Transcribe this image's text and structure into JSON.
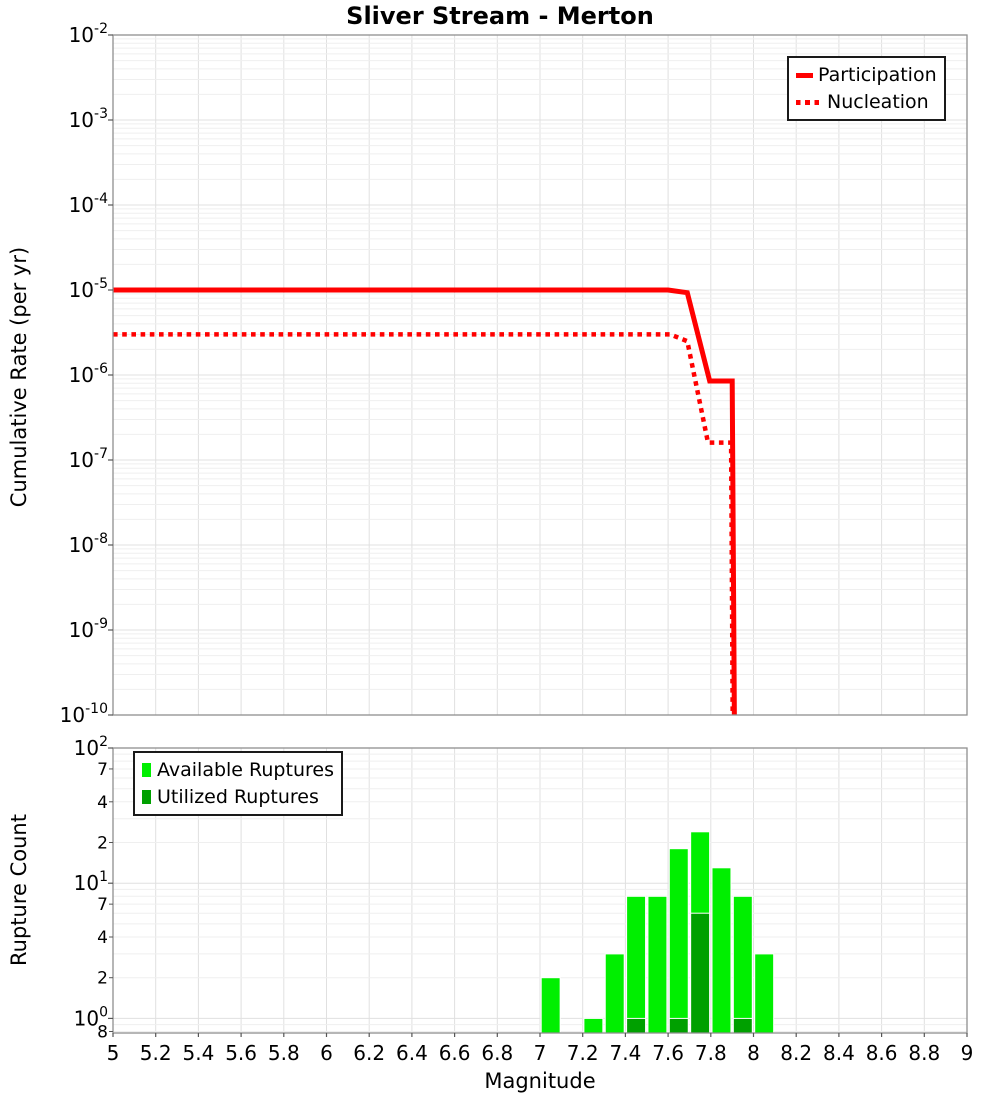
{
  "title": "Sliver Stream - Merton",
  "colors": {
    "line_red": "#ff0000",
    "available_green": "#00ef00",
    "utilized_green": "#00a000",
    "grid_minor": "#efefef",
    "grid_major": "#e0e0e0",
    "frame_gray": "#8f8f8f",
    "tick_gray": "#555555",
    "bar_outline": "#ffffff"
  },
  "x_tick_labels": [
    "5",
    "5.2",
    "5.4",
    "5.6",
    "5.8",
    "6",
    "6.2",
    "6.4",
    "6.6",
    "6.8",
    "7",
    "7.2",
    "7.4",
    "7.6",
    "7.8",
    "8",
    "8.2",
    "8.4",
    "8.6",
    "8.8",
    "9"
  ],
  "chart_data": [
    {
      "type": "line",
      "panel": "top",
      "title": "Sliver Stream - Merton",
      "xlabel": "",
      "ylabel": "Cumulative Rate (per yr)",
      "x_scale": "linear",
      "y_scale": "log",
      "xlim": [
        5,
        9
      ],
      "ylim": [
        1e-10,
        0.01
      ],
      "grid": true,
      "legend_position": "top-right",
      "y_tick_exponents": [
        -2,
        -3,
        -4,
        -5,
        -6,
        -7,
        -8,
        -9,
        -10
      ],
      "series": [
        {
          "name": "Participation",
          "style": "solid",
          "color": "#ff0000",
          "points": [
            [
              5.0,
              1e-05
            ],
            [
              7.6,
              1e-05
            ],
            [
              7.69,
              9.3e-06
            ],
            [
              7.795,
              8.5e-07
            ],
            [
              7.9,
              8.5e-07
            ],
            [
              7.913,
              1e-11
            ]
          ]
        },
        {
          "name": "Nucleation",
          "style": "dotted",
          "color": "#ff0000",
          "points": [
            [
              5.0,
              3e-06
            ],
            [
              7.61,
              3e-06
            ],
            [
              7.69,
              2.5e-06
            ],
            [
              7.787,
              1.6e-07
            ],
            [
              7.895,
              1.6e-07
            ],
            [
              7.905,
              1e-11
            ]
          ]
        }
      ]
    },
    {
      "type": "bar",
      "panel": "bottom",
      "xlabel": "Magnitude",
      "ylabel": "Rupture Count",
      "x_scale": "linear",
      "y_scale": "log",
      "xlim": [
        5,
        9
      ],
      "ylim": [
        0.78,
        100
      ],
      "grid": true,
      "legend_position": "top-left",
      "bin_width": 0.1,
      "categories": [
        7.05,
        7.15,
        7.25,
        7.35,
        7.45,
        7.55,
        7.65,
        7.75,
        7.85,
        7.95,
        8.05
      ],
      "series": [
        {
          "name": "Available Ruptures",
          "color": "#00ef00",
          "values": [
            2,
            0,
            1,
            3,
            8,
            8,
            18,
            24,
            13,
            8,
            3
          ]
        },
        {
          "name": "Utilized Ruptures",
          "color": "#00a000",
          "values": [
            0,
            0,
            0,
            0,
            1,
            0,
            1,
            6,
            0,
            1,
            0
          ]
        }
      ],
      "y_major_exponents": [
        2,
        1,
        0
      ],
      "y_minor_tick_labels": [
        {
          "label": "7",
          "value": 70
        },
        {
          "label": "4",
          "value": 40
        },
        {
          "label": "2",
          "value": 20
        },
        {
          "label": "7",
          "value": 7
        },
        {
          "label": "4",
          "value": 4
        },
        {
          "label": "2",
          "value": 2
        },
        {
          "label": "8",
          "value": 0.8
        }
      ]
    }
  ]
}
